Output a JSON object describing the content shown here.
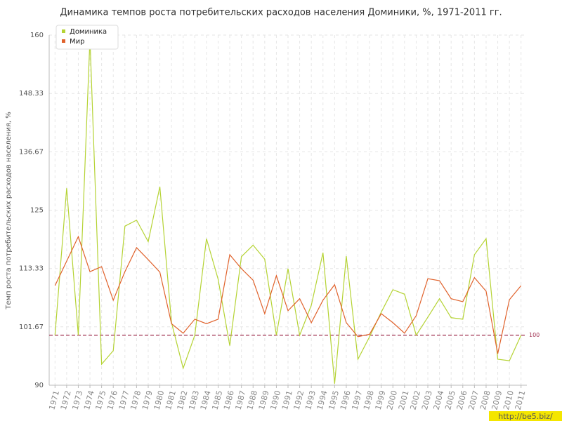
{
  "chart_data": {
    "type": "line",
    "title": "Динамика темпов роста потребительских расходов населения Доминики, %, 1971-2011 гг.",
    "y_label": "Темп роста потребительских расходов населения, %",
    "watermark": "http://be5.biz/",
    "x": [
      1971,
      1972,
      1973,
      1974,
      1975,
      1976,
      1977,
      1978,
      1979,
      1980,
      1981,
      1982,
      1983,
      1984,
      1985,
      1986,
      1987,
      1988,
      1989,
      1990,
      1991,
      1992,
      1993,
      1994,
      1995,
      1996,
      1997,
      1998,
      1999,
      2000,
      2001,
      2002,
      2003,
      2004,
      2005,
      2006,
      2007,
      2008,
      2009,
      2010,
      2011
    ],
    "xlim": [
      1970.5,
      2011.5
    ],
    "ylim": [
      90,
      160
    ],
    "yticks": [
      90,
      101.67,
      113.33,
      125,
      136.67,
      148.33,
      160
    ],
    "grid": true,
    "legend": "top-left",
    "reference_line": {
      "value": 100,
      "label": "100",
      "color": "#a03050"
    },
    "series": [
      {
        "name": "Доминика",
        "color": "#b5d334",
        "values": [
          100,
          129.4,
          100,
          159.3,
          94.2,
          96.9,
          121.8,
          123,
          118.7,
          129.7,
          102.5,
          93.4,
          100,
          119.3,
          111.2,
          97.9,
          115.7,
          118,
          115.2,
          100,
          113.3,
          100,
          106,
          116.5,
          90.3,
          115.8,
          95.2,
          99.7,
          104.6,
          109.1,
          108.2,
          100,
          103.6,
          107.3,
          103.5,
          103.2,
          116.1,
          119.3,
          95.2,
          94.9,
          100
        ]
      },
      {
        "name": "Мир",
        "color": "#e0622c",
        "values": [
          109.9,
          114.8,
          119.7,
          112.7,
          113.7,
          107,
          112.7,
          117.5,
          115.1,
          112.6,
          102.3,
          100.4,
          103.2,
          102.3,
          103.2,
          116.1,
          113.3,
          111,
          104.3,
          111.9,
          104.9,
          107.3,
          102.5,
          107,
          110.1,
          102.5,
          99.7,
          100.2,
          104.3,
          102.5,
          100.4,
          103.9,
          111.3,
          110.9,
          107.3,
          106.7,
          111.5,
          108.8,
          96.3,
          107.1,
          109.9
        ]
      }
    ]
  }
}
